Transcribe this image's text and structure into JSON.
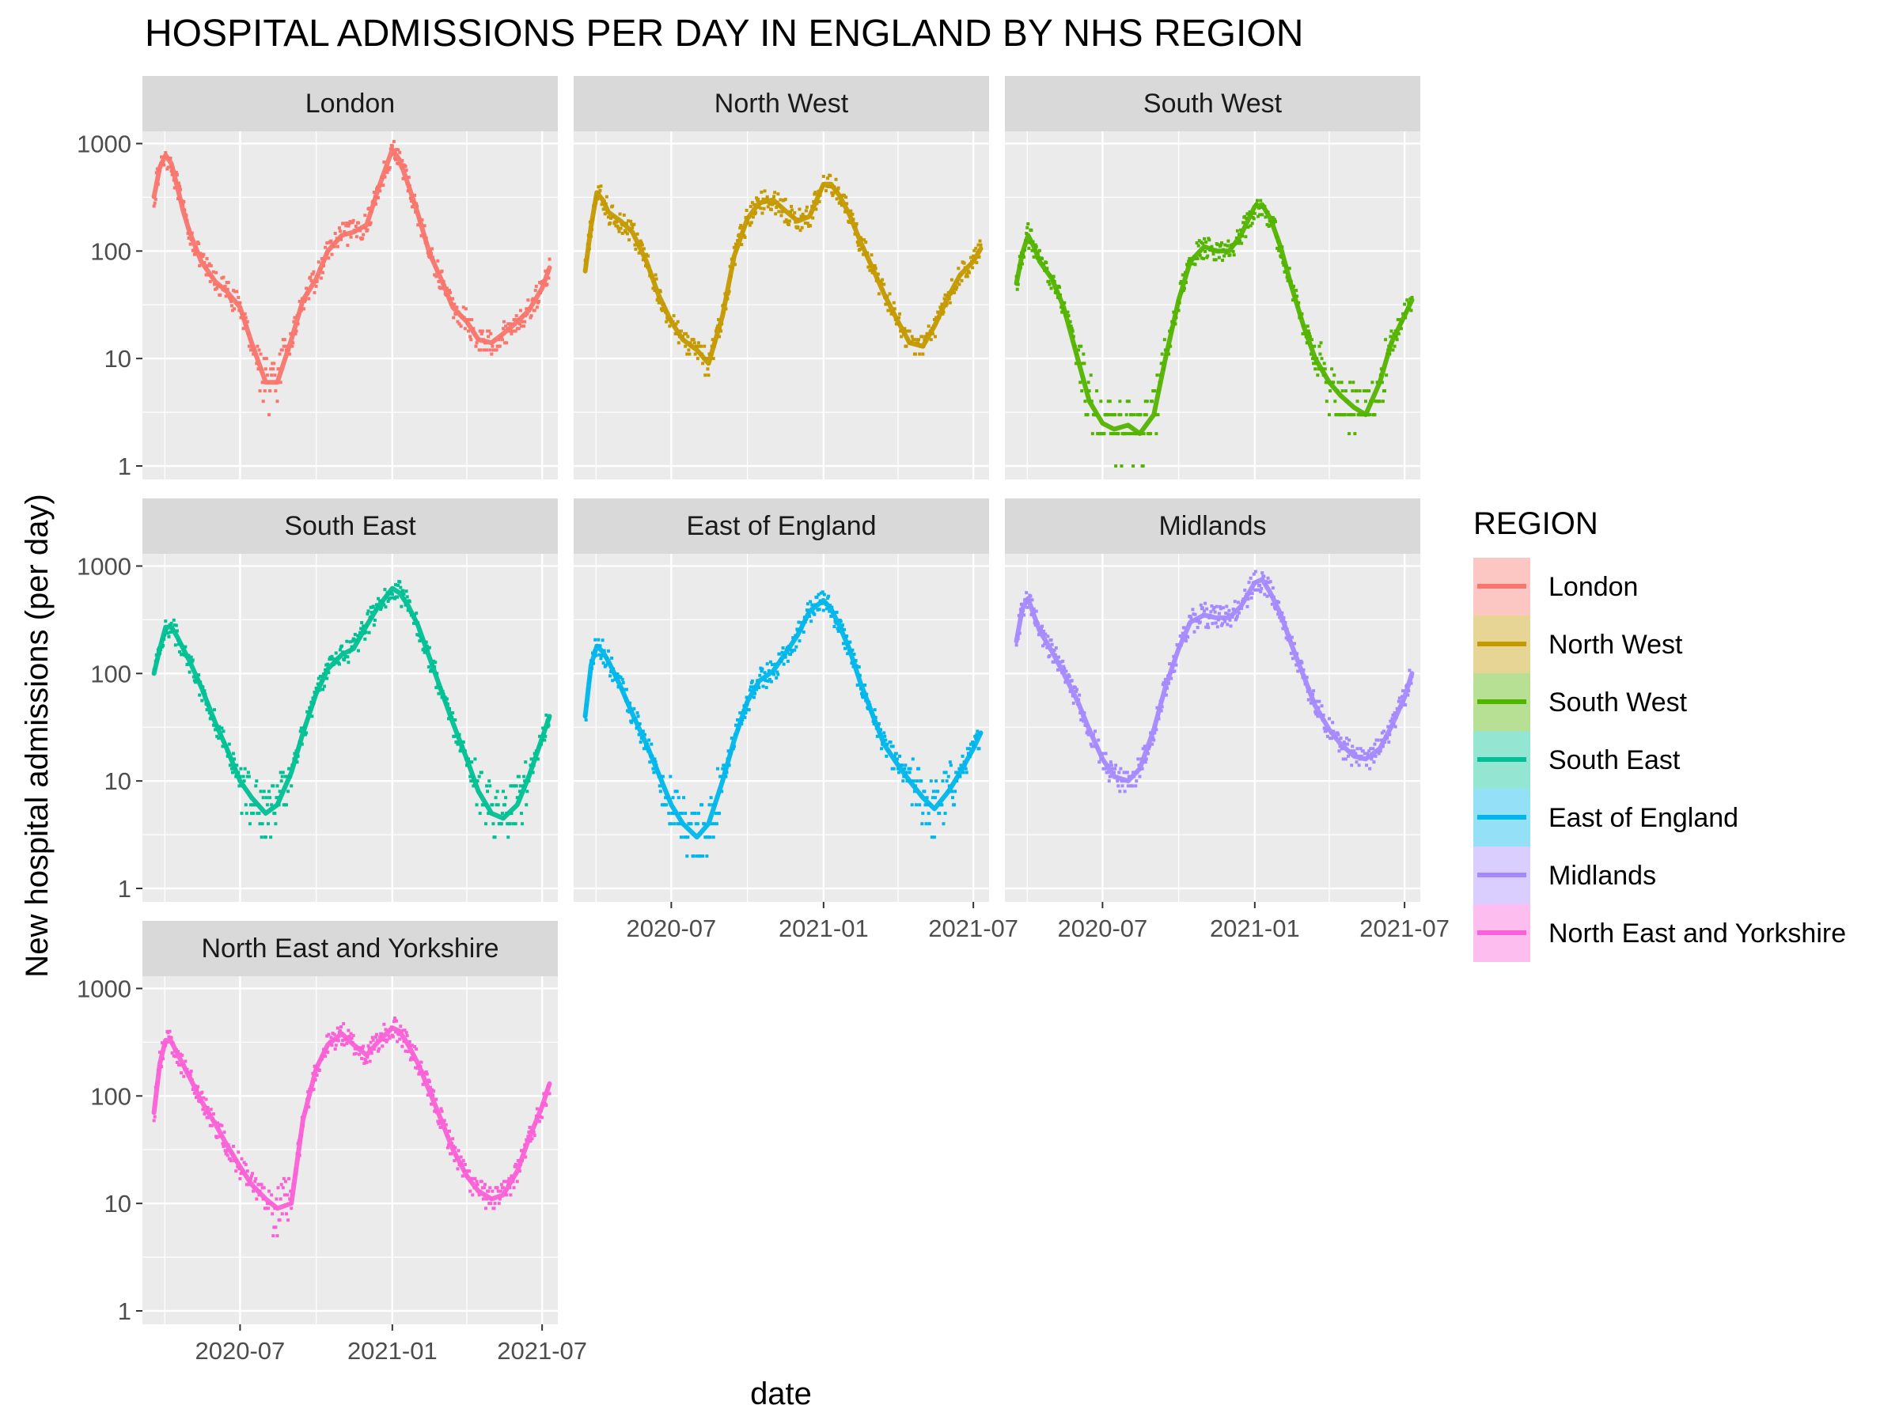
{
  "chart_data": {
    "type": "line",
    "title": "HOSPITAL ADMISSIONS PER DAY IN ENGLAND BY NHS REGION",
    "xlabel": "date",
    "ylabel": "New hospital admissions (per day)",
    "y_scale": "log10",
    "ylim": [
      0.75,
      1300
    ],
    "xlim": [
      "2020-03-05",
      "2021-07-20"
    ],
    "y_ticks": [
      1,
      10,
      100,
      1000
    ],
    "y_tick_labels": [
      "1",
      "10",
      "100",
      "1000"
    ],
    "x_ticks": [
      "2020-07-01",
      "2021-01-01",
      "2021-07-01"
    ],
    "x_tick_labels": [
      "2020-07",
      "2021-01",
      "2021-07"
    ],
    "grid": true,
    "facets": "3 columns",
    "legend": {
      "title": "REGION",
      "position": "right"
    },
    "series": [
      {
        "name": "London",
        "color": "#F8766D",
        "x": [
          "2020-03-19",
          "2020-03-26",
          "2020-04-02",
          "2020-04-09",
          "2020-04-16",
          "2020-04-23",
          "2020-05-01",
          "2020-05-15",
          "2020-06-01",
          "2020-06-15",
          "2020-07-01",
          "2020-07-15",
          "2020-08-01",
          "2020-08-15",
          "2020-09-01",
          "2020-09-15",
          "2020-10-01",
          "2020-10-15",
          "2020-11-01",
          "2020-11-15",
          "2020-12-01",
          "2020-12-15",
          "2021-01-01",
          "2021-01-10",
          "2021-01-20",
          "2021-02-01",
          "2021-02-15",
          "2021-03-01",
          "2021-03-15",
          "2021-04-01",
          "2021-04-15",
          "2021-05-01",
          "2021-05-15",
          "2021-06-01",
          "2021-06-15",
          "2021-07-01",
          "2021-07-10"
        ],
        "values": [
          320,
          600,
          780,
          650,
          400,
          240,
          150,
          80,
          52,
          42,
          30,
          14,
          6,
          6,
          15,
          35,
          55,
          100,
          140,
          150,
          175,
          380,
          880,
          700,
          420,
          220,
          95,
          55,
          30,
          22,
          15,
          14,
          17,
          22,
          28,
          45,
          70
        ]
      },
      {
        "name": "North West",
        "color": "#C49A00",
        "x": [
          "2020-03-19",
          "2020-03-26",
          "2020-04-02",
          "2020-04-09",
          "2020-04-16",
          "2020-05-01",
          "2020-05-15",
          "2020-06-01",
          "2020-06-15",
          "2020-07-01",
          "2020-07-15",
          "2020-08-01",
          "2020-08-15",
          "2020-09-01",
          "2020-09-15",
          "2020-10-01",
          "2020-10-15",
          "2020-11-01",
          "2020-11-15",
          "2020-12-01",
          "2020-12-15",
          "2021-01-01",
          "2021-01-10",
          "2021-01-20",
          "2021-02-01",
          "2021-02-15",
          "2021-03-01",
          "2021-03-15",
          "2021-04-01",
          "2021-04-15",
          "2021-05-01",
          "2021-05-15",
          "2021-06-01",
          "2021-06-15",
          "2021-07-01",
          "2021-07-10"
        ],
        "values": [
          65,
          170,
          350,
          300,
          230,
          190,
          150,
          80,
          40,
          22,
          15,
          12,
          9,
          25,
          90,
          200,
          280,
          300,
          240,
          190,
          210,
          420,
          420,
          330,
          220,
          120,
          70,
          40,
          22,
          14,
          13,
          20,
          38,
          60,
          80,
          105
        ]
      },
      {
        "name": "South West",
        "color": "#53B400",
        "x": [
          "2020-03-19",
          "2020-03-26",
          "2020-04-02",
          "2020-04-09",
          "2020-04-16",
          "2020-05-01",
          "2020-05-15",
          "2020-06-01",
          "2020-06-15",
          "2020-07-01",
          "2020-07-15",
          "2020-08-01",
          "2020-08-15",
          "2020-09-01",
          "2020-09-15",
          "2020-10-01",
          "2020-10-15",
          "2020-11-01",
          "2020-11-15",
          "2020-12-01",
          "2020-12-15",
          "2021-01-01",
          "2021-01-10",
          "2021-01-20",
          "2021-02-01",
          "2021-02-15",
          "2021-03-01",
          "2021-03-15",
          "2021-04-01",
          "2021-04-15",
          "2021-05-01",
          "2021-05-15",
          "2021-06-01",
          "2021-06-15",
          "2021-07-01",
          "2021-07-10"
        ],
        "values": [
          50,
          95,
          140,
          110,
          80,
          55,
          30,
          10,
          4,
          2.5,
          2.2,
          2.4,
          2,
          3,
          10,
          35,
          80,
          110,
          100,
          100,
          140,
          260,
          270,
          200,
          110,
          45,
          20,
          10,
          6,
          4.5,
          3.5,
          3,
          6,
          14,
          25,
          35
        ]
      },
      {
        "name": "South East",
        "color": "#00C094",
        "x": [
          "2020-03-19",
          "2020-03-26",
          "2020-04-02",
          "2020-04-09",
          "2020-04-16",
          "2020-05-01",
          "2020-05-15",
          "2020-06-01",
          "2020-06-15",
          "2020-07-01",
          "2020-07-15",
          "2020-08-01",
          "2020-08-15",
          "2020-09-01",
          "2020-09-15",
          "2020-10-01",
          "2020-10-15",
          "2020-11-01",
          "2020-11-15",
          "2020-12-01",
          "2020-12-15",
          "2021-01-01",
          "2021-01-10",
          "2021-01-20",
          "2021-02-01",
          "2021-02-15",
          "2021-03-01",
          "2021-03-15",
          "2021-04-01",
          "2021-04-15",
          "2021-05-01",
          "2021-05-15",
          "2021-06-01",
          "2021-06-15",
          "2021-07-01",
          "2021-07-10"
        ],
        "values": [
          100,
          170,
          270,
          270,
          220,
          130,
          75,
          35,
          20,
          10,
          7,
          5,
          6,
          12,
          28,
          65,
          110,
          150,
          170,
          280,
          420,
          620,
          560,
          430,
          280,
          140,
          70,
          35,
          16,
          8,
          5,
          4.5,
          6,
          11,
          25,
          40
        ]
      },
      {
        "name": "East of England",
        "color": "#00B6EB",
        "x": [
          "2020-03-19",
          "2020-03-26",
          "2020-04-02",
          "2020-04-09",
          "2020-04-16",
          "2020-05-01",
          "2020-05-15",
          "2020-06-01",
          "2020-06-15",
          "2020-07-01",
          "2020-07-15",
          "2020-08-01",
          "2020-08-15",
          "2020-09-01",
          "2020-09-15",
          "2020-10-01",
          "2020-10-15",
          "2020-11-01",
          "2020-11-15",
          "2020-12-01",
          "2020-12-15",
          "2021-01-01",
          "2021-01-10",
          "2021-01-20",
          "2021-02-01",
          "2021-02-15",
          "2021-03-01",
          "2021-03-15",
          "2021-04-01",
          "2021-04-15",
          "2021-05-01",
          "2021-05-15",
          "2021-06-01",
          "2021-06-15",
          "2021-07-01",
          "2021-07-10"
        ],
        "values": [
          40,
          120,
          180,
          160,
          130,
          75,
          42,
          22,
          12,
          6,
          4,
          3,
          4,
          10,
          24,
          55,
          85,
          105,
          150,
          230,
          380,
          480,
          400,
          280,
          170,
          80,
          42,
          22,
          14,
          10,
          7,
          5.5,
          8,
          12,
          20,
          28
        ]
      },
      {
        "name": "Midlands",
        "color": "#A58AFF",
        "x": [
          "2020-03-19",
          "2020-03-26",
          "2020-04-02",
          "2020-04-09",
          "2020-04-16",
          "2020-05-01",
          "2020-05-15",
          "2020-06-01",
          "2020-06-15",
          "2020-07-01",
          "2020-07-15",
          "2020-08-01",
          "2020-08-15",
          "2020-09-01",
          "2020-09-15",
          "2020-10-01",
          "2020-10-15",
          "2020-11-01",
          "2020-11-15",
          "2020-12-01",
          "2020-12-15",
          "2021-01-01",
          "2021-01-10",
          "2021-01-20",
          "2021-02-01",
          "2021-02-15",
          "2021-03-01",
          "2021-03-15",
          "2021-04-01",
          "2021-04-15",
          "2021-05-01",
          "2021-05-15",
          "2021-06-01",
          "2021-06-15",
          "2021-07-01",
          "2021-07-10"
        ],
        "values": [
          200,
          400,
          500,
          350,
          250,
          160,
          100,
          55,
          30,
          16,
          11,
          10,
          13,
          30,
          75,
          170,
          300,
          350,
          330,
          330,
          420,
          700,
          750,
          560,
          360,
          180,
          95,
          50,
          30,
          22,
          17,
          16,
          20,
          32,
          60,
          100
        ]
      },
      {
        "name": "North East and Yorkshire",
        "color": "#FB61D7",
        "x": [
          "2020-03-19",
          "2020-03-26",
          "2020-04-02",
          "2020-04-09",
          "2020-04-16",
          "2020-05-01",
          "2020-05-15",
          "2020-06-01",
          "2020-06-15",
          "2020-07-01",
          "2020-07-15",
          "2020-08-01",
          "2020-08-15",
          "2020-09-01",
          "2020-09-15",
          "2020-10-01",
          "2020-10-15",
          "2020-11-01",
          "2020-11-15",
          "2020-12-01",
          "2020-12-15",
          "2021-01-01",
          "2021-01-10",
          "2021-01-20",
          "2021-02-01",
          "2021-02-15",
          "2021-03-01",
          "2021-03-15",
          "2021-04-01",
          "2021-04-15",
          "2021-05-01",
          "2021-05-15",
          "2021-06-01",
          "2021-06-15",
          "2021-07-01",
          "2021-07-10"
        ],
        "values": [
          70,
          200,
          330,
          320,
          250,
          150,
          90,
          55,
          35,
          22,
          15,
          11,
          9,
          10,
          60,
          180,
          300,
          380,
          300,
          240,
          320,
          430,
          400,
          300,
          200,
          110,
          60,
          32,
          18,
          13,
          11,
          12,
          20,
          40,
          80,
          130
        ]
      }
    ]
  }
}
